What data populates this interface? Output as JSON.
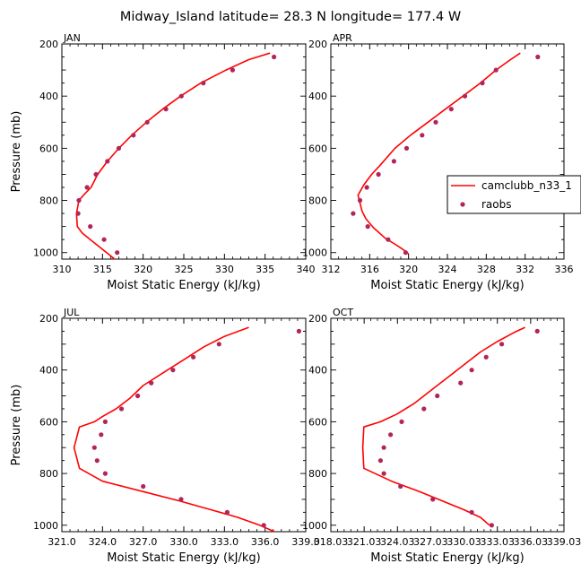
{
  "figure_title": "Midway_Island   latitude= 28.3 N longitude= 177.4 W",
  "legend": {
    "model_label": "camclubb_n33_1",
    "obs_label": "raobs"
  },
  "colors": {
    "model": "#ff0000",
    "obs": "#b2245a"
  },
  "chart_data": [
    {
      "type": "line",
      "panel_label": "JAN",
      "xlabel": "Moist Static Energy (kJ/kg)",
      "ylabel": "Pressure (mb)",
      "xlim": [
        310,
        340
      ],
      "ylim": [
        1025,
        200
      ],
      "xticks": [
        "310",
        "315",
        "320",
        "325",
        "330",
        "335",
        "340"
      ],
      "yticks": [
        "200",
        "400",
        "600",
        "800",
        "1000"
      ],
      "series": [
        {
          "style": "line",
          "x": [
            316.5,
            315.5,
            314.5,
            313.5,
            312.5,
            311.9,
            311.8,
            312.1,
            312.8,
            313.6,
            314.4,
            315.6,
            317.0,
            318.6,
            320.4,
            322.4,
            324.6,
            327.1,
            330.2,
            333.0,
            335.6
          ],
          "y": [
            1025,
            1000,
            975,
            950,
            925,
            900,
            850,
            800,
            775,
            750,
            700,
            650,
            600,
            550,
            500,
            450,
            400,
            350,
            300,
            260,
            235
          ]
        },
        {
          "style": "markers",
          "x": [
            316.8,
            315.2,
            313.5,
            312.0,
            312.1,
            313.1,
            314.2,
            315.6,
            317.0,
            318.8,
            320.5,
            322.8,
            324.7,
            327.4,
            331.0,
            336.1
          ],
          "y": [
            1000,
            950,
            900,
            850,
            800,
            750,
            700,
            650,
            600,
            550,
            500,
            450,
            400,
            350,
            300,
            250
          ]
        }
      ]
    },
    {
      "type": "line",
      "panel_label": "APR",
      "xlabel": "Moist Static Energy (kJ/kg)",
      "ylabel": "",
      "xlim": [
        312,
        336
      ],
      "ylim": [
        1025,
        200
      ],
      "xticks": [
        "312",
        "316",
        "320",
        "324",
        "328",
        "332",
        "336"
      ],
      "yticks": [
        "200",
        "400",
        "600",
        "800",
        "1000"
      ],
      "series": [
        {
          "style": "line",
          "x": [
            320.0,
            319.5,
            318.7,
            317.6,
            316.4,
            315.6,
            315.2,
            314.8,
            315.4,
            316.2,
            317.2,
            318.6,
            320.2,
            322.0,
            323.8,
            325.6,
            327.4,
            329.0,
            330.5,
            331.5
          ],
          "y": [
            1005,
            990,
            970,
            945,
            905,
            870,
            840,
            780,
            740,
            700,
            660,
            600,
            550,
            500,
            450,
            400,
            350,
            300,
            260,
            235
          ]
        },
        {
          "style": "markers",
          "x": [
            319.7,
            317.9,
            315.8,
            314.3,
            315.0,
            315.7,
            316.9,
            318.5,
            319.8,
            321.4,
            322.8,
            324.4,
            325.8,
            327.6,
            329.0,
            333.3
          ],
          "y": [
            1000,
            950,
            900,
            850,
            800,
            750,
            700,
            650,
            600,
            550,
            500,
            450,
            400,
            350,
            300,
            250
          ]
        }
      ]
    },
    {
      "type": "line",
      "panel_label": "JUL",
      "xlabel": "Moist Static Energy (kJ/kg)",
      "ylabel": "Pressure (mb)",
      "xlim": [
        321,
        339
      ],
      "ylim": [
        1025,
        200
      ],
      "xticks": [
        "321.0",
        "324.0",
        "327.0",
        "330.0",
        "333.0",
        "336.0",
        "339.0"
      ],
      "yticks": [
        "200",
        "400",
        "600",
        "800",
        "1000"
      ],
      "series": [
        {
          "style": "line",
          "x": [
            336.7,
            335.6,
            334.0,
            332.0,
            329.6,
            327.0,
            324.0,
            322.3,
            321.9,
            322.3,
            323.4,
            324.0,
            325.0,
            326.0,
            327.0,
            328.5,
            330.0,
            331.5,
            333.0,
            334.8
          ],
          "y": [
            1025,
            1000,
            970,
            940,
            905,
            870,
            830,
            780,
            700,
            620,
            600,
            580,
            550,
            510,
            460,
            410,
            360,
            310,
            270,
            235
          ]
        },
        {
          "style": "markers",
          "x": [
            335.9,
            333.2,
            329.8,
            327.0,
            324.2,
            323.6,
            323.4,
            323.9,
            324.2,
            325.4,
            326.6,
            327.6,
            329.2,
            330.7,
            332.6,
            338.5
          ],
          "y": [
            1000,
            950,
            900,
            850,
            800,
            750,
            700,
            650,
            600,
            550,
            500,
            450,
            400,
            350,
            300,
            250
          ]
        }
      ]
    },
    {
      "type": "line",
      "panel_label": "OCT",
      "xlabel": "Moist Static Energy (kJ/kg)",
      "ylabel": "",
      "xlim": [
        318.03,
        339.0
      ],
      "ylim": [
        1025,
        200
      ],
      "xticks": [
        "318.03",
        "321.03",
        "324.03",
        "327.03",
        "330.03",
        "333.03",
        "336.03",
        "339.03"
      ],
      "yticks": [
        "200",
        "400",
        "600",
        "800",
        "1000"
      ],
      "series": [
        {
          "style": "line",
          "x": [
            332.3,
            331.5,
            330.0,
            328.0,
            326.0,
            323.5,
            321.0,
            320.9,
            321.0,
            322.5,
            324.0,
            325.5,
            327.0,
            328.5,
            330.0,
            331.5,
            333.0,
            334.5,
            335.5
          ],
          "y": [
            1000,
            970,
            940,
            905,
            870,
            830,
            780,
            700,
            620,
            600,
            570,
            530,
            480,
            430,
            380,
            330,
            290,
            255,
            235
          ]
        },
        {
          "style": "markers",
          "x": [
            332.5,
            330.7,
            327.2,
            324.3,
            322.8,
            322.5,
            322.8,
            323.4,
            324.4,
            326.4,
            327.6,
            329.7,
            330.7,
            332.0,
            333.4,
            336.6
          ],
          "y": [
            1000,
            950,
            900,
            850,
            800,
            750,
            700,
            650,
            600,
            550,
            500,
            450,
            400,
            350,
            300,
            250
          ]
        }
      ]
    }
  ]
}
